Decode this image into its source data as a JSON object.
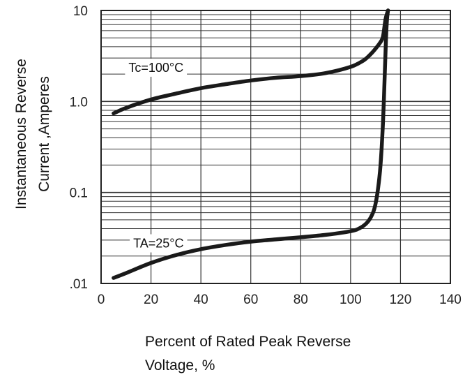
{
  "chart_data": {
    "type": "line",
    "title": "",
    "xlabel_lines": [
      "Percent of Rated Peak Reverse",
      "Voltage, %"
    ],
    "ylabel_lines": [
      "Instantaneous Reverse",
      "Current ,Amperes"
    ],
    "x_scale": "linear",
    "y_scale": "log",
    "xlim": [
      0,
      140
    ],
    "ylim": [
      0.01,
      10
    ],
    "x_ticks": [
      0,
      20,
      40,
      60,
      80,
      100,
      120,
      140
    ],
    "x_tick_labels": [
      "0",
      "20",
      "40",
      "60",
      "80",
      "100",
      "120",
      "140"
    ],
    "y_ticks": [
      0.01,
      0.1,
      1,
      10
    ],
    "y_tick_labels": [
      ".01",
      "0.1",
      "1.0",
      "10"
    ],
    "grid": true,
    "series": [
      {
        "name": "Tc=100°C",
        "color": "#1a1a1a",
        "x": [
          5,
          10,
          20,
          30,
          40,
          50,
          60,
          70,
          80,
          90,
          100,
          105,
          108,
          110,
          112,
          113,
          114,
          115
        ],
        "y": [
          0.74,
          0.85,
          1.05,
          1.22,
          1.4,
          1.55,
          1.7,
          1.82,
          1.9,
          2.05,
          2.4,
          2.8,
          3.3,
          3.8,
          4.5,
          5.2,
          8,
          10
        ]
      },
      {
        "name": "TA=25°C",
        "color": "#1a1a1a",
        "x": [
          5,
          10,
          20,
          30,
          40,
          50,
          60,
          70,
          80,
          90,
          100,
          104,
          107,
          109,
          110,
          111,
          112,
          113,
          113.7,
          114.2,
          114.6,
          115
        ],
        "y": [
          0.0115,
          0.013,
          0.0168,
          0.0205,
          0.0238,
          0.0265,
          0.0288,
          0.0305,
          0.0322,
          0.0342,
          0.0375,
          0.041,
          0.048,
          0.06,
          0.075,
          0.11,
          0.2,
          0.6,
          2,
          5,
          8,
          10
        ]
      }
    ],
    "annotations": [
      {
        "text": "Tc=100°C",
        "x": 22,
        "y": 2.3
      },
      {
        "text": "TA=25°C",
        "x": 23,
        "y": 0.027
      }
    ]
  }
}
